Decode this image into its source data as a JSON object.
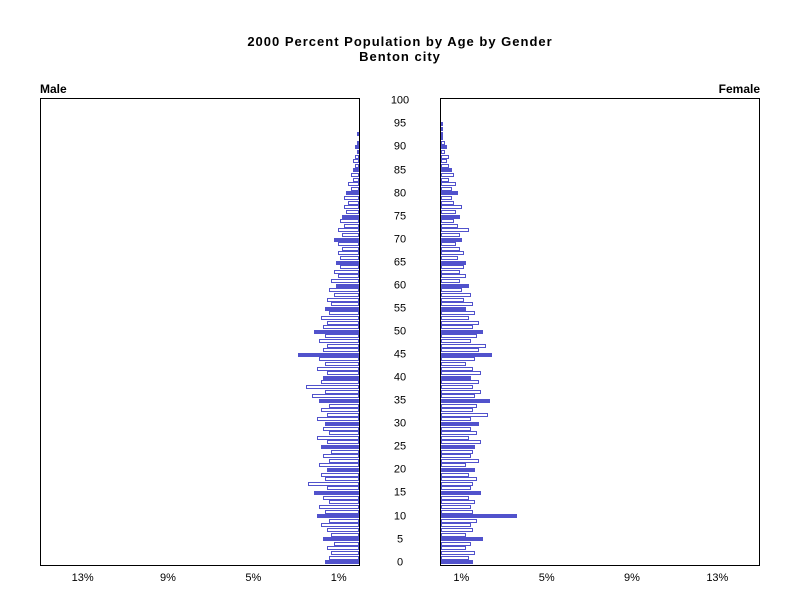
{
  "header": {
    "title": "2000 Percent Population by Age by Gender",
    "subtitle": "Benton city",
    "left_label": "Male",
    "right_label": "Female"
  },
  "chart_data": {
    "type": "bar",
    "variant": "population-pyramid",
    "title": "2000 Percent Population by Age by Gender",
    "subtitle": "Benton city",
    "left_series_label": "Male",
    "right_series_label": "Female",
    "age_axis": {
      "min": 0,
      "max": 100,
      "label_step": 5
    },
    "x_ticks_percent": [
      1,
      5,
      9,
      13
    ],
    "x_max_percent": 15,
    "x_tick_suffix": "%",
    "bar_color": "#5152cc",
    "solid_bar_every": 5,
    "grid": false,
    "ages": [
      0,
      1,
      2,
      3,
      4,
      5,
      6,
      7,
      8,
      9,
      10,
      11,
      12,
      13,
      14,
      15,
      16,
      17,
      18,
      19,
      20,
      21,
      22,
      23,
      24,
      25,
      26,
      27,
      28,
      29,
      30,
      31,
      32,
      33,
      34,
      35,
      36,
      37,
      38,
      39,
      40,
      41,
      42,
      43,
      44,
      45,
      46,
      47,
      48,
      49,
      50,
      51,
      52,
      53,
      54,
      55,
      56,
      57,
      58,
      59,
      60,
      61,
      62,
      63,
      64,
      65,
      66,
      67,
      68,
      69,
      70,
      71,
      72,
      73,
      74,
      75,
      76,
      77,
      78,
      79,
      80,
      81,
      82,
      83,
      84,
      85,
      86,
      87,
      88,
      89,
      90,
      91,
      92,
      93,
      94,
      95,
      96,
      97,
      98,
      99,
      100
    ],
    "series": [
      {
        "name": "Male",
        "values": [
          1.6,
          1.4,
          1.3,
          1.5,
          1.2,
          1.7,
          1.3,
          1.5,
          1.8,
          1.4,
          2.0,
          1.6,
          1.9,
          1.4,
          1.7,
          2.1,
          1.5,
          2.4,
          1.6,
          1.8,
          1.5,
          1.9,
          1.4,
          1.7,
          1.3,
          1.8,
          1.5,
          2.0,
          1.4,
          1.7,
          1.6,
          2.0,
          1.5,
          1.8,
          1.4,
          1.9,
          2.2,
          1.6,
          2.5,
          1.8,
          1.7,
          1.5,
          2.0,
          1.6,
          1.9,
          2.9,
          1.7,
          1.5,
          1.9,
          1.6,
          2.1,
          1.7,
          1.5,
          1.8,
          1.4,
          1.6,
          1.3,
          1.5,
          1.2,
          1.4,
          1.1,
          1.3,
          1.0,
          1.2,
          0.9,
          1.1,
          0.9,
          1.0,
          0.8,
          1.0,
          1.2,
          0.8,
          1.0,
          0.7,
          0.9,
          0.8,
          0.6,
          0.7,
          0.5,
          0.7,
          0.6,
          0.4,
          0.5,
          0.3,
          0.4,
          0.3,
          0.2,
          0.3,
          0.2,
          0.1,
          0.2,
          0.1,
          0,
          0.1,
          0,
          0,
          0,
          0,
          0,
          0,
          0
        ]
      },
      {
        "name": "Female",
        "values": [
          1.5,
          1.3,
          1.6,
          1.2,
          1.4,
          2.0,
          1.2,
          1.5,
          1.4,
          1.7,
          3.6,
          1.5,
          1.4,
          1.6,
          1.3,
          1.9,
          1.4,
          1.5,
          1.7,
          1.3,
          1.6,
          1.2,
          1.8,
          1.4,
          1.5,
          1.6,
          1.9,
          1.3,
          1.7,
          1.4,
          1.8,
          1.4,
          2.2,
          1.5,
          1.7,
          2.3,
          1.6,
          1.9,
          1.5,
          1.8,
          1.4,
          1.9,
          1.5,
          1.2,
          1.6,
          2.4,
          1.8,
          2.1,
          1.4,
          1.7,
          2.0,
          1.5,
          1.8,
          1.3,
          1.6,
          1.2,
          1.5,
          1.1,
          1.4,
          1.0,
          1.3,
          0.9,
          1.2,
          0.9,
          1.1,
          1.2,
          0.8,
          1.1,
          0.9,
          0.7,
          1.0,
          0.9,
          1.3,
          0.8,
          0.6,
          0.9,
          0.7,
          1.0,
          0.6,
          0.5,
          0.8,
          0.5,
          0.7,
          0.4,
          0.6,
          0.5,
          0.4,
          0.3,
          0.4,
          0.2,
          0.3,
          0.2,
          0.1,
          0.1,
          0.1,
          0.1,
          0,
          0,
          0,
          0,
          0
        ]
      }
    ]
  }
}
